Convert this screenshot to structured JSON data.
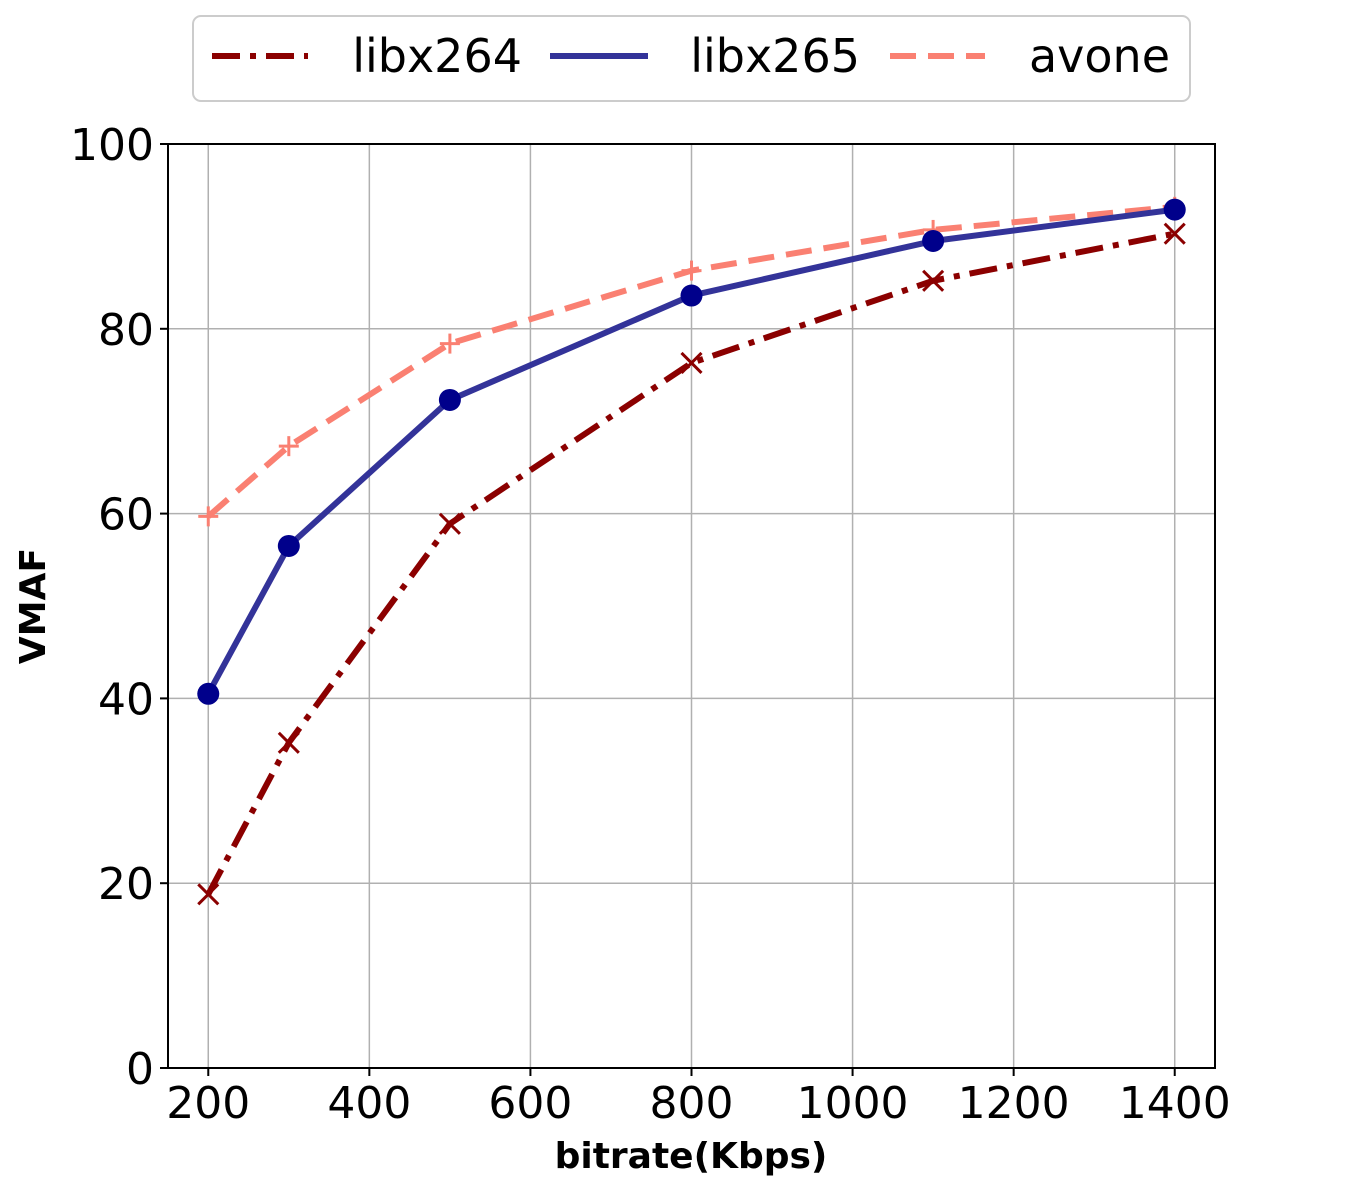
{
  "chart_data": {
    "type": "line",
    "xlabel": "bitrate(Kbps)",
    "ylabel": "VMAF",
    "xlim": [
      150,
      1450
    ],
    "ylim": [
      0,
      100
    ],
    "x": [
      200,
      300,
      500,
      800,
      1100,
      1400
    ],
    "xticks": [
      "200",
      "400",
      "600",
      "800",
      "1000",
      "1200",
      "1400"
    ],
    "yticks": [
      "0",
      "20",
      "40",
      "60",
      "80",
      "100"
    ],
    "grid": true,
    "legend": {
      "placement": "top-center",
      "columns": 3
    },
    "series": [
      {
        "name": "libx264",
        "color": "#8b0000",
        "line_style": "dash-dot",
        "marker": "x",
        "values": [
          18.8,
          35.2,
          58.9,
          76.3,
          85.2,
          90.3
        ]
      },
      {
        "name": "libx265",
        "color": "#333399",
        "marker_color": "#00008b",
        "line_style": "solid",
        "marker": "circle",
        "values": [
          40.5,
          56.5,
          72.3,
          83.6,
          89.5,
          92.9
        ]
      },
      {
        "name": "avone",
        "color": "#fa8072",
        "line_style": "dashed",
        "marker": "plus",
        "values": [
          59.7,
          67.3,
          78.4,
          86.3,
          90.7,
          93.2
        ]
      }
    ]
  }
}
